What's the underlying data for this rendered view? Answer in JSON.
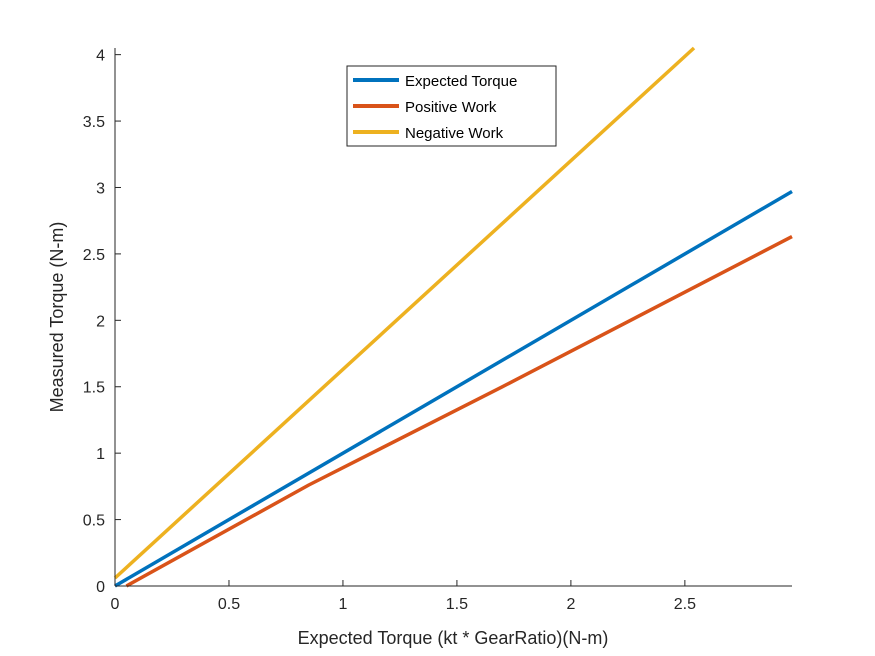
{
  "chart_data": {
    "type": "line",
    "title": "",
    "xlabel": "Expected Torque (kt * GearRatio)(N-m)",
    "ylabel": "Measured Torque (N-m)",
    "xlim": [
      0,
      2.97
    ],
    "ylim": [
      0,
      4.05
    ],
    "xticks": [
      0,
      0.5,
      1,
      1.5,
      2,
      2.5
    ],
    "xtick_labels": [
      "0",
      "0.5",
      "1",
      "1.5",
      "2",
      "2.5"
    ],
    "yticks": [
      0,
      0.5,
      1,
      1.5,
      2,
      2.5,
      3,
      3.5,
      4
    ],
    "ytick_labels": [
      "0",
      "0.5",
      "1",
      "1.5",
      "2",
      "2.5",
      "3",
      "3.5",
      "4"
    ],
    "grid": false,
    "legend_position": "top-center",
    "series": [
      {
        "name": "Expected Torque",
        "color": "#0072BD",
        "x": [
          0,
          2.97
        ],
        "y": [
          0,
          2.97
        ]
      },
      {
        "name": "Positive Work",
        "color": "#D95319",
        "x": [
          0.05,
          0.85,
          1.7,
          2.97
        ],
        "y": [
          0,
          0.76,
          1.5,
          2.63
        ]
      },
      {
        "name": "Negative Work",
        "color": "#EDB120",
        "x": [
          0,
          2.54
        ],
        "y": [
          0.06,
          4.05
        ]
      }
    ]
  }
}
